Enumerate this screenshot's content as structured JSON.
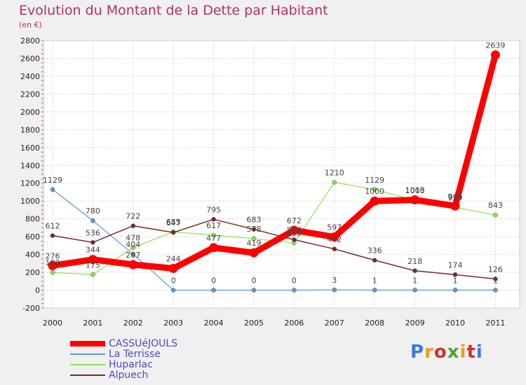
{
  "title": "Evolution du Montant de la Dette par Habitant",
  "subtitle": "(en €)",
  "logo_text": "Proxiti",
  "chart_data": {
    "type": "line",
    "title": "Evolution du Montant de la Dette par Habitant",
    "subtitle": "(en €)",
    "x": [
      2000,
      2001,
      2002,
      2003,
      2004,
      2005,
      2006,
      2007,
      2008,
      2009,
      2010,
      2011
    ],
    "ylim": [
      -200,
      2800
    ],
    "yticks": [
      -200,
      0,
      200,
      400,
      600,
      800,
      1000,
      1200,
      1400,
      1600,
      1800,
      2000,
      2200,
      2400,
      2600,
      2800
    ],
    "grid": true,
    "legend_position": "bottom-left",
    "series": [
      {
        "name": "CASSUéJOULS",
        "color": "#ff0000",
        "values": [
          276,
          344,
          287,
          244,
          477,
          419,
          672,
          597,
          1000,
          1013,
          944,
          2639
        ],
        "labels": [
          "276",
          "344",
          "287",
          "244",
          "477",
          "419",
          "672",
          "597",
          "1000",
          "1013",
          "944",
          "2639"
        ]
      },
      {
        "name": "La Terrisse",
        "color": "#5b9bd5",
        "values": [
          1129,
          780,
          404,
          0,
          0,
          0,
          0,
          3,
          1,
          1,
          1,
          1
        ],
        "labels": [
          "1129",
          "780",
          "404",
          "0",
          "0",
          "0",
          "0",
          "3",
          "1",
          "1",
          "1",
          "1"
        ]
      },
      {
        "name": "Huparlac",
        "color": "#90e050",
        "values": [
          199,
          175,
          478,
          655,
          617,
          578,
          530,
          1210,
          1129,
          1008,
          929,
          843
        ],
        "labels": [
          "199",
          "175",
          "478",
          "655",
          "617",
          "578",
          "530",
          "1210",
          "1129",
          "1008",
          "929",
          "843"
        ]
      },
      {
        "name": "Alpuech",
        "color": "#7a2a2a",
        "values": [
          612,
          536,
          722,
          647,
          795,
          683,
          566,
          462,
          336,
          218,
          174,
          126
        ],
        "labels": [
          "612",
          "536",
          "722",
          "647",
          "795",
          "683",
          "566",
          "462",
          "336",
          "218",
          "174",
          "126"
        ]
      }
    ]
  }
}
